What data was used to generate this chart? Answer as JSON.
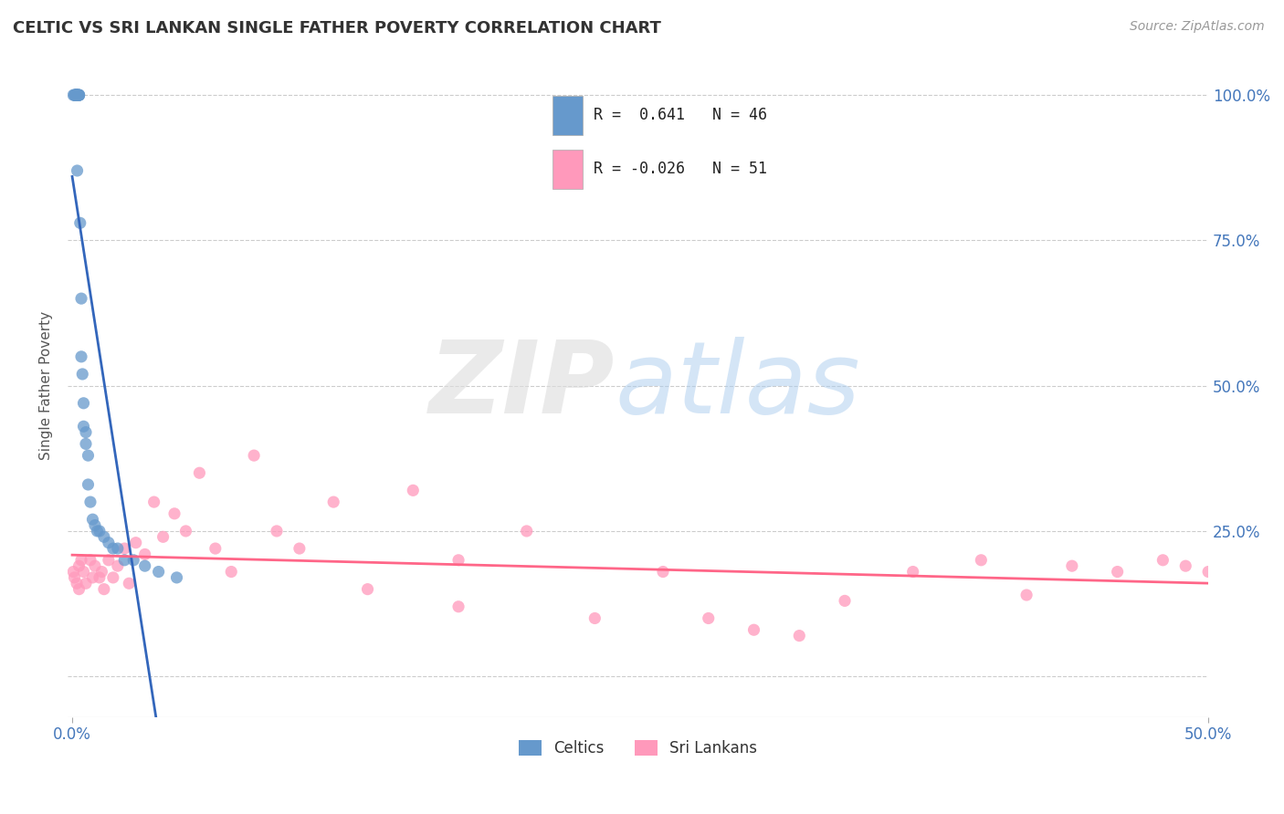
{
  "title": "CELTIC VS SRI LANKAN SINGLE FATHER POVERTY CORRELATION CHART",
  "source_text": "Source: ZipAtlas.com",
  "ylabel": "Single Father Poverty",
  "xlim": [
    -0.002,
    0.5
  ],
  "ylim": [
    -0.07,
    1.07
  ],
  "xtick_positions": [
    0.0,
    0.5
  ],
  "xticklabels": [
    "0.0%",
    "50.0%"
  ],
  "ytick_positions": [
    0.0,
    0.25,
    0.5,
    0.75,
    1.0
  ],
  "yticklabels_right": [
    "",
    "25.0%",
    "50.0%",
    "75.0%",
    "100.0%"
  ],
  "celtics_R": 0.641,
  "celtics_N": 46,
  "srilankans_R": -0.026,
  "srilankans_N": 51,
  "celtics_color": "#6699CC",
  "srilankans_color": "#FF99BB",
  "celtics_line_color": "#3366BB",
  "srilankans_line_color": "#FF6688",
  "background_color": "#FFFFFF",
  "celtics_x": [
    0.0005,
    0.001,
    0.0012,
    0.0013,
    0.0014,
    0.0015,
    0.0016,
    0.0017,
    0.0018,
    0.002,
    0.002,
    0.002,
    0.002,
    0.002,
    0.0022,
    0.0023,
    0.0024,
    0.0025,
    0.003,
    0.003,
    0.003,
    0.003,
    0.0035,
    0.004,
    0.004,
    0.0045,
    0.005,
    0.005,
    0.006,
    0.006,
    0.007,
    0.007,
    0.008,
    0.009,
    0.01,
    0.011,
    0.012,
    0.014,
    0.016,
    0.018,
    0.02,
    0.023,
    0.027,
    0.032,
    0.038,
    0.046
  ],
  "celtics_y": [
    1.0,
    1.0,
    1.0,
    1.0,
    1.0,
    1.0,
    1.0,
    1.0,
    1.0,
    1.0,
    1.0,
    1.0,
    1.0,
    1.0,
    0.87,
    1.0,
    1.0,
    1.0,
    1.0,
    1.0,
    1.0,
    1.0,
    0.78,
    0.65,
    0.55,
    0.52,
    0.47,
    0.43,
    0.42,
    0.4,
    0.38,
    0.33,
    0.3,
    0.27,
    0.26,
    0.25,
    0.25,
    0.24,
    0.23,
    0.22,
    0.22,
    0.2,
    0.2,
    0.19,
    0.18,
    0.17
  ],
  "srilankans_x": [
    0.0005,
    0.001,
    0.002,
    0.003,
    0.003,
    0.004,
    0.005,
    0.006,
    0.008,
    0.009,
    0.01,
    0.012,
    0.013,
    0.014,
    0.016,
    0.018,
    0.02,
    0.023,
    0.025,
    0.028,
    0.032,
    0.036,
    0.04,
    0.045,
    0.05,
    0.056,
    0.063,
    0.07,
    0.08,
    0.09,
    0.1,
    0.115,
    0.13,
    0.15,
    0.17,
    0.2,
    0.23,
    0.26,
    0.3,
    0.34,
    0.37,
    0.4,
    0.42,
    0.44,
    0.46,
    0.48,
    0.49,
    0.5,
    0.17,
    0.28,
    0.32
  ],
  "srilankans_y": [
    0.18,
    0.17,
    0.16,
    0.19,
    0.15,
    0.2,
    0.18,
    0.16,
    0.2,
    0.17,
    0.19,
    0.17,
    0.18,
    0.15,
    0.2,
    0.17,
    0.19,
    0.22,
    0.16,
    0.23,
    0.21,
    0.3,
    0.24,
    0.28,
    0.25,
    0.35,
    0.22,
    0.18,
    0.38,
    0.25,
    0.22,
    0.3,
    0.15,
    0.32,
    0.2,
    0.25,
    0.1,
    0.18,
    0.08,
    0.13,
    0.18,
    0.2,
    0.14,
    0.19,
    0.18,
    0.2,
    0.19,
    0.18,
    0.12,
    0.1,
    0.07
  ]
}
